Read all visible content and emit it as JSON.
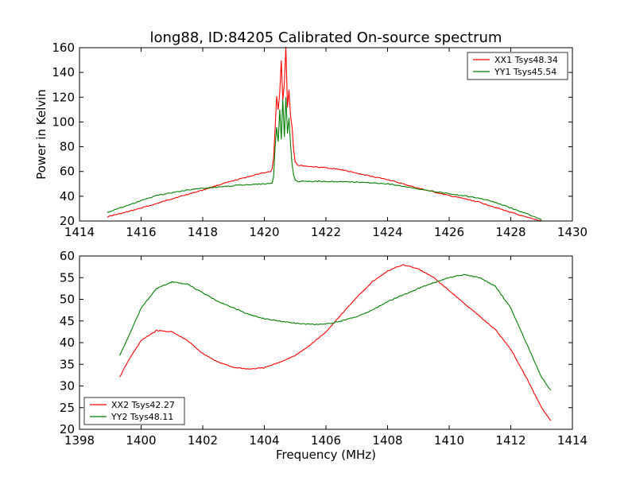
{
  "figure": {
    "title": "long88, ID:84205 Calibrated On-source spectrum",
    "xlabel": "Frequency (MHz)",
    "ylabel_top": "Power in Kelvin"
  },
  "colors": {
    "red": "#ff0000",
    "green": "#008000"
  },
  "chart_data": [
    {
      "type": "line",
      "title": "long88, ID:84205 Calibrated On-source spectrum",
      "xlabel": "",
      "ylabel": "Power in Kelvin",
      "xlim": [
        1414,
        1430
      ],
      "ylim": [
        20,
        160
      ],
      "xticks": [
        1414,
        1416,
        1418,
        1420,
        1422,
        1424,
        1426,
        1428,
        1430
      ],
      "yticks": [
        20,
        40,
        60,
        80,
        100,
        120,
        140,
        160
      ],
      "grid": false,
      "legend_position": "top-right",
      "series": [
        {
          "name": "XX1 Tsys48.34",
          "color": "#ff0000",
          "points": [
            [
              1414.9,
              23.5
            ],
            [
              1415.5,
              27
            ],
            [
              1416,
              30.5
            ],
            [
              1416.5,
              34
            ],
            [
              1417,
              38
            ],
            [
              1417.5,
              41.5
            ],
            [
              1418,
              45
            ],
            [
              1418.5,
              49
            ],
            [
              1419,
              52.5
            ],
            [
              1419.5,
              56
            ],
            [
              1420,
              59
            ],
            [
              1420.2,
              60
            ],
            [
              1420.25,
              62
            ],
            [
              1420.3,
              70
            ],
            [
              1420.35,
              95
            ],
            [
              1420.4,
              121
            ],
            [
              1420.45,
              110
            ],
            [
              1420.5,
              124
            ],
            [
              1420.55,
              150
            ],
            [
              1420.6,
              118
            ],
            [
              1420.65,
              131
            ],
            [
              1420.7,
              161
            ],
            [
              1420.75,
              112
            ],
            [
              1420.8,
              126
            ],
            [
              1420.85,
              105
            ],
            [
              1420.9,
              96
            ],
            [
              1420.95,
              78
            ],
            [
              1421,
              68
            ],
            [
              1421.1,
              65
            ],
            [
              1421.5,
              64
            ],
            [
              1422,
              63
            ],
            [
              1422.5,
              61.5
            ],
            [
              1423,
              58.5
            ],
            [
              1423.5,
              56
            ],
            [
              1424,
              53.5
            ],
            [
              1424.5,
              50
            ],
            [
              1425,
              46.5
            ],
            [
              1425.5,
              43.5
            ],
            [
              1426,
              40.5
            ],
            [
              1426.5,
              38
            ],
            [
              1427,
              35
            ],
            [
              1427.5,
              31
            ],
            [
              1428,
              27
            ],
            [
              1428.5,
              23
            ],
            [
              1429,
              20
            ]
          ]
        },
        {
          "name": "YY1 Tsys45.54",
          "color": "#008000",
          "points": [
            [
              1414.9,
              27
            ],
            [
              1415.5,
              32
            ],
            [
              1416,
              36.5
            ],
            [
              1416.5,
              40.5
            ],
            [
              1417,
              43
            ],
            [
              1417.5,
              45
            ],
            [
              1418,
              46.5
            ],
            [
              1418.5,
              47.5
            ],
            [
              1419,
              48.5
            ],
            [
              1419.5,
              49.5
            ],
            [
              1420,
              50
            ],
            [
              1420.25,
              50.5
            ],
            [
              1420.3,
              55
            ],
            [
              1420.35,
              80
            ],
            [
              1420.4,
              96
            ],
            [
              1420.45,
              84
            ],
            [
              1420.5,
              110
            ],
            [
              1420.55,
              86
            ],
            [
              1420.6,
              118
            ],
            [
              1420.65,
              88
            ],
            [
              1420.7,
              120
            ],
            [
              1420.75,
              91
            ],
            [
              1420.8,
              103
            ],
            [
              1420.85,
              82
            ],
            [
              1420.9,
              66
            ],
            [
              1420.95,
              57
            ],
            [
              1421,
              53
            ],
            [
              1421.1,
              52
            ],
            [
              1422,
              52
            ],
            [
              1423,
              51.5
            ],
            [
              1424,
              50
            ],
            [
              1425,
              46
            ],
            [
              1426,
              42
            ],
            [
              1427,
              38.5
            ],
            [
              1427.5,
              35
            ],
            [
              1428,
              30.5
            ],
            [
              1428.5,
              26
            ],
            [
              1429,
              21
            ]
          ]
        }
      ]
    },
    {
      "type": "line",
      "title": "",
      "xlabel": "Frequency (MHz)",
      "ylabel": "",
      "xlim": [
        1398,
        1414
      ],
      "ylim": [
        20,
        60
      ],
      "xticks": [
        1398,
        1400,
        1402,
        1404,
        1406,
        1408,
        1410,
        1412,
        1414
      ],
      "yticks": [
        20,
        25,
        30,
        35,
        40,
        45,
        50,
        55,
        60
      ],
      "grid": false,
      "legend_position": "bottom-left",
      "series": [
        {
          "name": "XX2 Tsys42.27",
          "color": "#ff0000",
          "points": [
            [
              1399.3,
              32
            ],
            [
              1399.6,
              36
            ],
            [
              1400,
              40.5
            ],
            [
              1400.5,
              42.8
            ],
            [
              1401,
              42.5
            ],
            [
              1401.5,
              40.5
            ],
            [
              1402,
              37.5
            ],
            [
              1402.5,
              35.5
            ],
            [
              1403,
              34.3
            ],
            [
              1403.5,
              33.9
            ],
            [
              1404,
              34.2
            ],
            [
              1404.5,
              35.5
            ],
            [
              1405,
              37
            ],
            [
              1405.5,
              39.5
            ],
            [
              1406,
              42.5
            ],
            [
              1406.5,
              46.5
            ],
            [
              1407,
              50.5
            ],
            [
              1407.5,
              54
            ],
            [
              1408,
              56.5
            ],
            [
              1408.5,
              58
            ],
            [
              1409,
              57
            ],
            [
              1409.5,
              55
            ],
            [
              1410,
              52
            ],
            [
              1410.5,
              49
            ],
            [
              1411,
              46
            ],
            [
              1411.5,
              43
            ],
            [
              1412,
              38.5
            ],
            [
              1412.5,
              32
            ],
            [
              1413,
              25
            ],
            [
              1413.3,
              22
            ]
          ]
        },
        {
          "name": "YY2 Tsys48.11",
          "color": "#008000",
          "points": [
            [
              1399.3,
              37
            ],
            [
              1399.6,
              41.5
            ],
            [
              1400,
              48
            ],
            [
              1400.5,
              52.5
            ],
            [
              1401,
              54
            ],
            [
              1401.5,
              53.5
            ],
            [
              1402,
              51.5
            ],
            [
              1402.5,
              49.5
            ],
            [
              1403,
              48
            ],
            [
              1403.5,
              46.5
            ],
            [
              1404,
              45.5
            ],
            [
              1404.5,
              45
            ],
            [
              1405,
              44.5
            ],
            [
              1405.5,
              44.2
            ],
            [
              1406,
              44.3
            ],
            [
              1406.5,
              45
            ],
            [
              1407,
              46
            ],
            [
              1407.5,
              47.5
            ],
            [
              1408,
              49.5
            ],
            [
              1408.5,
              51
            ],
            [
              1409,
              52.5
            ],
            [
              1409.5,
              53.8
            ],
            [
              1410,
              55
            ],
            [
              1410.5,
              55.7
            ],
            [
              1411,
              55
            ],
            [
              1411.5,
              53
            ],
            [
              1412,
              48
            ],
            [
              1412.5,
              40
            ],
            [
              1413,
              32
            ],
            [
              1413.3,
              29
            ]
          ]
        }
      ]
    }
  ]
}
